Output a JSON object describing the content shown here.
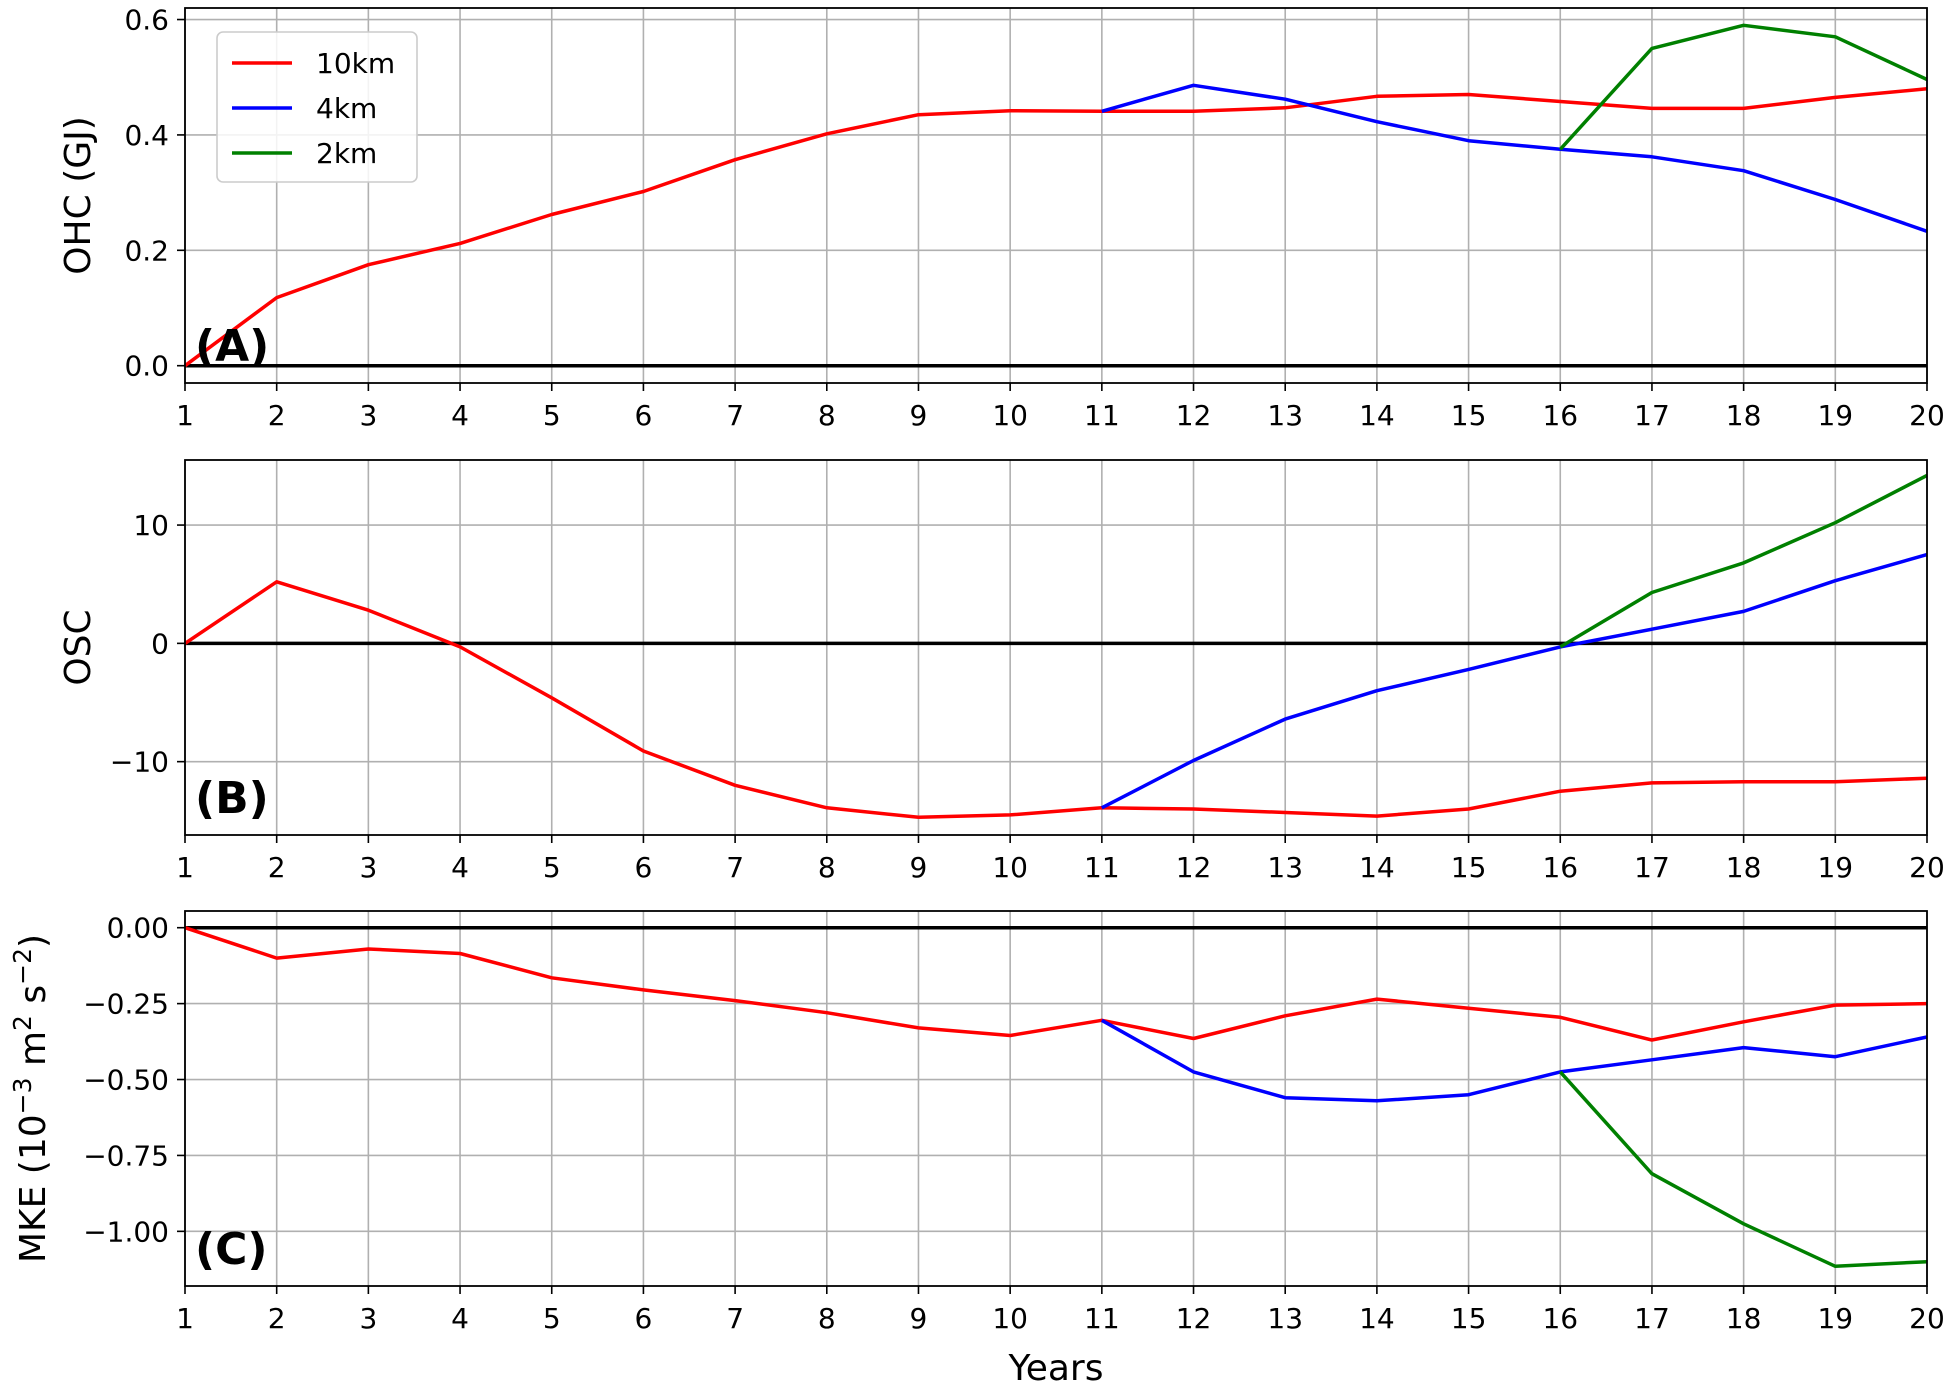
{
  "chart_data": [
    {
      "type": "line",
      "panel_label": "(A)",
      "ylabel": "OHC (GJ)",
      "xlabel": "",
      "x": [
        1,
        2,
        3,
        4,
        5,
        6,
        7,
        8,
        9,
        10,
        11,
        12,
        13,
        14,
        15,
        16,
        17,
        18,
        19,
        20
      ],
      "xlim": [
        1,
        20
      ],
      "ylim": [
        -0.03,
        0.62
      ],
      "yticks": [
        0.0,
        0.2,
        0.4,
        0.6
      ],
      "ytick_labels": [
        "0.0",
        "0.2",
        "0.4",
        "0.6"
      ],
      "zero_line": true,
      "grid": true,
      "legend": {
        "position": "upper-left"
      },
      "series": [
        {
          "name": "10km",
          "color": "#ff0000",
          "x": [
            1,
            2,
            3,
            4,
            5,
            6,
            7,
            8,
            9,
            10,
            11,
            12,
            13,
            14,
            15,
            16,
            17,
            18,
            19,
            20
          ],
          "values": [
            0.0,
            0.118,
            0.175,
            0.212,
            0.262,
            0.302,
            0.357,
            0.402,
            0.435,
            0.442,
            0.441,
            0.441,
            0.447,
            0.467,
            0.47,
            0.458,
            0.446,
            0.446,
            0.465,
            0.48
          ]
        },
        {
          "name": "4km",
          "color": "#0000ff",
          "x": [
            11,
            12,
            13,
            14,
            15,
            16,
            17,
            18,
            19,
            20
          ],
          "values": [
            0.441,
            0.486,
            0.462,
            0.423,
            0.39,
            0.375,
            0.362,
            0.338,
            0.288,
            0.233
          ]
        },
        {
          "name": "2km",
          "color": "#008000",
          "x": [
            16,
            17,
            18,
            19,
            20
          ],
          "values": [
            0.375,
            0.55,
            0.59,
            0.57,
            0.496
          ]
        }
      ]
    },
    {
      "type": "line",
      "panel_label": "(B)",
      "ylabel": "OSC",
      "xlabel": "",
      "x": [
        1,
        2,
        3,
        4,
        5,
        6,
        7,
        8,
        9,
        10,
        11,
        12,
        13,
        14,
        15,
        16,
        17,
        18,
        19,
        20
      ],
      "xlim": [
        1,
        20
      ],
      "ylim": [
        -16.2,
        15.5
      ],
      "yticks": [
        -10,
        0,
        10
      ],
      "ytick_labels": [
        "−10",
        "0",
        "10"
      ],
      "zero_line": true,
      "grid": true,
      "series": [
        {
          "name": "10km",
          "color": "#ff0000",
          "x": [
            1,
            2,
            3,
            4,
            5,
            6,
            7,
            8,
            9,
            10,
            11,
            12,
            13,
            14,
            15,
            16,
            17,
            18,
            19,
            20
          ],
          "values": [
            0.0,
            5.2,
            2.8,
            -0.3,
            -4.6,
            -9.1,
            -12.0,
            -13.9,
            -14.7,
            -14.5,
            -13.9,
            -14.0,
            -14.3,
            -14.6,
            -14.0,
            -12.5,
            -11.8,
            -11.7,
            -11.7,
            -11.4
          ]
        },
        {
          "name": "4km",
          "color": "#0000ff",
          "x": [
            11,
            12,
            13,
            14,
            15,
            16,
            17,
            18,
            19,
            20
          ],
          "values": [
            -13.9,
            -9.9,
            -6.4,
            -4.0,
            -2.2,
            -0.3,
            1.2,
            2.7,
            5.3,
            7.5
          ]
        },
        {
          "name": "2km",
          "color": "#008000",
          "x": [
            16,
            17,
            18,
            19,
            20
          ],
          "values": [
            -0.3,
            4.3,
            6.8,
            10.2,
            14.2
          ]
        }
      ]
    },
    {
      "type": "line",
      "panel_label": "(C)",
      "ylabel": "MKE (10",
      "ylabel_parts": {
        "base": "MKE (10",
        "exp1": "−3",
        "mid": " m",
        "exp2": "2",
        "mid2": " s",
        "exp3": "−2",
        "end": ")"
      },
      "xlabel": "Years",
      "x": [
        1,
        2,
        3,
        4,
        5,
        6,
        7,
        8,
        9,
        10,
        11,
        12,
        13,
        14,
        15,
        16,
        17,
        18,
        19,
        20
      ],
      "xlim": [
        1,
        20
      ],
      "ylim": [
        -1.18,
        0.055
      ],
      "yticks": [
        -1.0,
        -0.75,
        -0.5,
        -0.25,
        0.0
      ],
      "ytick_labels": [
        "−1.00",
        "−0.75",
        "−0.50",
        "−0.25",
        "0.00"
      ],
      "zero_line": true,
      "grid": true,
      "series": [
        {
          "name": "10km",
          "color": "#ff0000",
          "x": [
            1,
            2,
            3,
            4,
            5,
            6,
            7,
            8,
            9,
            10,
            11,
            12,
            13,
            14,
            15,
            16,
            17,
            18,
            19,
            20
          ],
          "values": [
            0.0,
            -0.1,
            -0.07,
            -0.085,
            -0.165,
            -0.205,
            -0.24,
            -0.28,
            -0.33,
            -0.355,
            -0.305,
            -0.365,
            -0.29,
            -0.235,
            -0.265,
            -0.295,
            -0.37,
            -0.31,
            -0.255,
            -0.25
          ]
        },
        {
          "name": "4km",
          "color": "#0000ff",
          "x": [
            11,
            12,
            13,
            14,
            15,
            16,
            17,
            18,
            19,
            20
          ],
          "values": [
            -0.305,
            -0.475,
            -0.56,
            -0.57,
            -0.55,
            -0.475,
            -0.435,
            -0.395,
            -0.425,
            -0.36
          ]
        },
        {
          "name": "2km",
          "color": "#008000",
          "x": [
            16,
            17,
            18,
            19,
            20
          ],
          "values": [
            -0.475,
            -0.81,
            -0.975,
            -1.115,
            -1.1
          ]
        }
      ]
    }
  ]
}
